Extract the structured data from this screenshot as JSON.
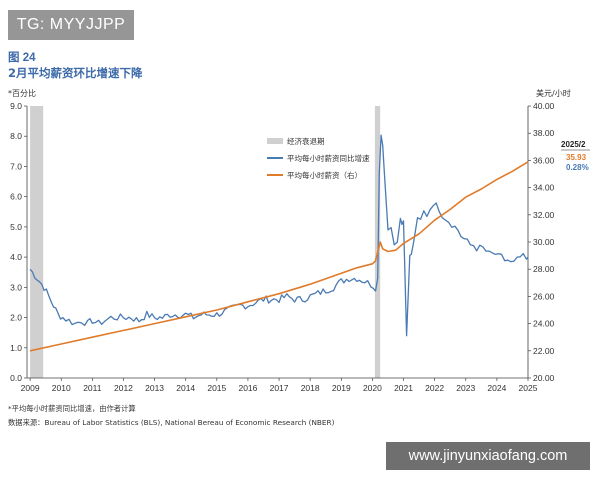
{
  "watermark_top": "TG: MYYJJPP",
  "watermark_bottom": "www.jinyunxiaofang.com",
  "chart_data": {
    "type": "line",
    "figure_label": "图 24",
    "title": "2月平均薪资环比增速下降",
    "left_axis_unit": "*百分比",
    "right_axis_unit": "美元/小时",
    "xlim": [
      2008.9,
      2025.0
    ],
    "x_ticks": [
      2009,
      2010,
      2011,
      2012,
      2013,
      2014,
      2015,
      2016,
      2017,
      2018,
      2019,
      2020,
      2021,
      2022,
      2023,
      2024,
      2025
    ],
    "left_ylim": [
      0.0,
      9.0
    ],
    "left_ticks": [
      "0.0",
      "1.0",
      "2.0",
      "3.0",
      "4.0",
      "5.0",
      "6.0",
      "7.0",
      "8.0",
      "9.0"
    ],
    "right_ylim": [
      20.0,
      40.0
    ],
    "right_ticks": [
      "20.00",
      "22.00",
      "24.00",
      "26.00",
      "28.00",
      "30.00",
      "32.00",
      "34.00",
      "36.00",
      "38.00",
      "40.00"
    ],
    "recessions": [
      [
        2009.0,
        2009.42
      ],
      [
        2020.08,
        2020.25
      ]
    ],
    "legend": [
      {
        "label": "经济衰退期",
        "kind": "band"
      },
      {
        "label": "平均每小时薪资同比增速",
        "kind": "line",
        "color": "#4a7ab4"
      },
      {
        "label": "平均每小时薪资（右）",
        "kind": "line",
        "color": "#e07b2a"
      }
    ],
    "series": [
      {
        "name": "平均每小时薪资同比增速",
        "axis": "left",
        "color": "#4a7ab4",
        "x": [
          2009.0,
          2009.15,
          2009.3,
          2009.45,
          2009.6,
          2009.75,
          2009.9,
          2010.05,
          2010.25,
          2010.45,
          2010.65,
          2010.85,
          2011.0,
          2011.2,
          2011.4,
          2011.6,
          2011.8,
          2012.0,
          2012.25,
          2012.5,
          2012.75,
          2013.0,
          2013.25,
          2013.5,
          2013.75,
          2014.0,
          2014.25,
          2014.5,
          2014.75,
          2015.0,
          2015.25,
          2015.5,
          2015.75,
          2016.0,
          2016.25,
          2016.5,
          2016.75,
          2017.0,
          2017.25,
          2017.5,
          2017.75,
          2018.0,
          2018.25,
          2018.5,
          2018.75,
          2019.0,
          2019.25,
          2019.5,
          2019.75,
          2019.95,
          2020.1,
          2020.17,
          2020.22,
          2020.28,
          2020.33,
          2020.4,
          2020.5,
          2020.6,
          2020.7,
          2020.8,
          2020.9,
          2020.95,
          2021.0,
          2021.1,
          2021.2,
          2021.25,
          2021.3,
          2021.38,
          2021.45,
          2021.55,
          2021.65,
          2021.75,
          2021.85,
          2021.95,
          2022.05,
          2022.15,
          2022.25,
          2022.35,
          2022.45,
          2022.55,
          2022.65,
          2022.75,
          2022.85,
          2022.95,
          2023.05,
          2023.15,
          2023.25,
          2023.35,
          2023.45,
          2023.55,
          2023.65,
          2023.75,
          2023.85,
          2023.95,
          2024.05,
          2024.15,
          2024.25,
          2024.35,
          2024.45,
          2024.55,
          2024.65,
          2024.75,
          2024.85,
          2024.95,
          2025.0
        ],
        "values": [
          3.6,
          3.4,
          3.2,
          3.0,
          2.7,
          2.4,
          2.1,
          2.0,
          1.9,
          1.8,
          1.9,
          1.8,
          1.9,
          1.8,
          1.9,
          2.0,
          2.0,
          2.0,
          2.0,
          1.9,
          2.1,
          2.0,
          2.0,
          2.1,
          2.1,
          2.1,
          2.0,
          2.1,
          2.1,
          2.1,
          2.2,
          2.3,
          2.4,
          2.4,
          2.5,
          2.6,
          2.6,
          2.6,
          2.7,
          2.6,
          2.6,
          2.7,
          2.8,
          2.9,
          3.0,
          3.2,
          3.3,
          3.3,
          3.2,
          3.1,
          3.0,
          3.3,
          6.8,
          8.0,
          7.7,
          6.5,
          5.0,
          5.0,
          4.5,
          4.5,
          5.3,
          5.2,
          5.2,
          1.4,
          4.0,
          4.1,
          4.3,
          4.9,
          5.2,
          5.2,
          5.5,
          5.4,
          5.6,
          5.8,
          5.7,
          5.6,
          5.4,
          5.3,
          5.2,
          5.1,
          5.0,
          4.9,
          4.7,
          4.6,
          4.5,
          4.4,
          4.4,
          4.3,
          4.3,
          4.3,
          4.2,
          4.1,
          4.1,
          4.1,
          4.0,
          4.0,
          3.9,
          3.9,
          3.8,
          3.8,
          3.9,
          4.0,
          4.0,
          3.9,
          4.0
        ],
        "noise": 0.12
      },
      {
        "name": "平均每小时薪资（右）",
        "axis": "right",
        "color": "#e07b2a",
        "x": [
          2009.0,
          2010.0,
          2011.0,
          2012.0,
          2013.0,
          2014.0,
          2015.0,
          2016.0,
          2017.0,
          2018.0,
          2019.0,
          2019.5,
          2020.0,
          2020.1,
          2020.25,
          2020.33,
          2020.5,
          2020.75,
          2021.0,
          2021.5,
          2022.0,
          2022.5,
          2023.0,
          2023.5,
          2024.0,
          2024.5,
          2025.0
        ],
        "values": [
          22.0,
          22.5,
          23.0,
          23.5,
          24.0,
          24.5,
          25.0,
          25.6,
          26.2,
          26.9,
          27.7,
          28.1,
          28.4,
          28.6,
          30.0,
          29.5,
          29.3,
          29.4,
          29.9,
          30.6,
          31.6,
          32.4,
          33.3,
          33.9,
          34.6,
          35.2,
          35.9
        ]
      }
    ],
    "annotation": {
      "date": "2025/2",
      "wage": "35.93",
      "growth": "0.28%"
    },
    "footnote": "*平均每小时薪资同比增速，由作者计算",
    "source": "数据来源：Bureau of Labor Statistics (BLS), National Bereau of Economic Research (NBER)"
  }
}
